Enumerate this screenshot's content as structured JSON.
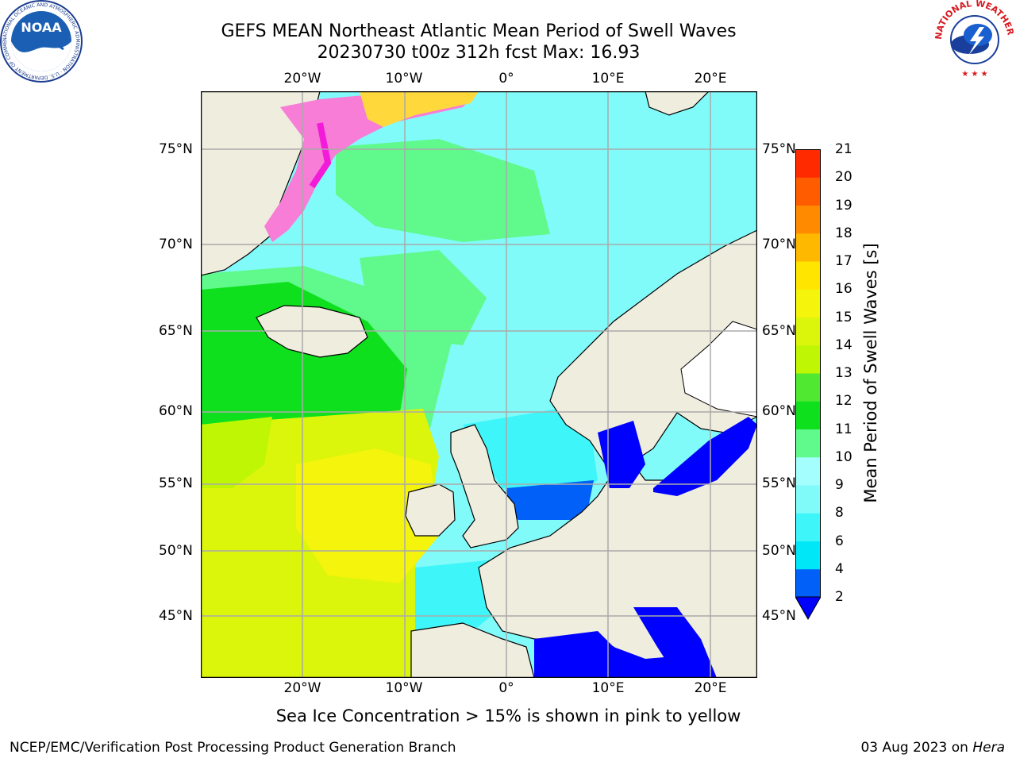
{
  "header": {
    "title_line1": "GEFS MEAN Northeast Atlantic Mean Period of Swell Waves",
    "title_line2": "20230730 t00z 312h fcst   Max: 16.93"
  },
  "logos": {
    "noaa_text": "NOAA",
    "noaa_ring": "NATIONAL OCEANIC AND ATMOSPHERIC ADMINISTRATION · U.S. DEPARTMENT OF COMMERCE",
    "nws_ring": "NATIONAL WEATHER SERVICE"
  },
  "map": {
    "lon_labels": [
      "20°W",
      "10°W",
      "0°",
      "10°E",
      "20°E"
    ],
    "lat_labels": [
      "75°N",
      "70°N",
      "65°N",
      "60°N",
      "55°N",
      "50°N",
      "45°N"
    ],
    "colors": {
      "land": "#efedde",
      "lakes": "#ffffff",
      "grid": "#aaaaaa",
      "coast": "#000000",
      "ice_pink": "#f77dd6",
      "ice_magenta": "#f21bd9",
      "ice_yellow": "#ffd93c"
    }
  },
  "colorbar": {
    "label": "Mean Period of Swell Waves [s]",
    "ticks": [
      "2",
      "4",
      "6",
      "8",
      "9",
      "10",
      "11",
      "12",
      "13",
      "14",
      "15",
      "16",
      "17",
      "18",
      "19",
      "20",
      "21"
    ],
    "colors": [
      "#0060f7",
      "#00e8f8",
      "#3ef6fa",
      "#81fbfa",
      "#a4fefd",
      "#5ff98c",
      "#0fe01e",
      "#50e830",
      "#bef603",
      "#dbf50b",
      "#f4f40c",
      "#ffe500",
      "#ffb800",
      "#ff8a00",
      "#ff5c00",
      "#ff2a00"
    ],
    "under_color": "#0000ff",
    "extend": "min"
  },
  "annotation": "Sea Ice Concentration > 15% is shown in pink to yellow",
  "footer": {
    "left": "NCEP/EMC/Verification Post Processing Product Generation Branch",
    "date": "03 Aug 2023 on ",
    "machine": "Hera"
  }
}
